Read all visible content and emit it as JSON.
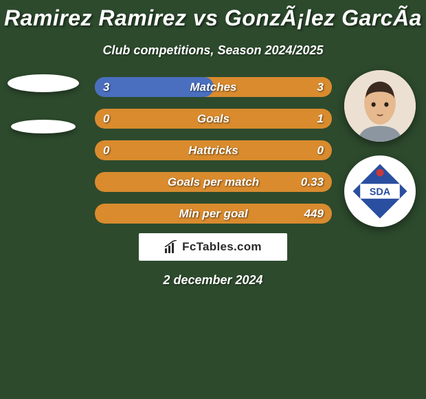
{
  "title": "Ramirez Ramirez vs GonzÃ¡lez GarcÃ­a",
  "subtitle": "Club competitions, Season 2024/2025",
  "date": "2 december 2024",
  "colors": {
    "background": "#2d4a2d",
    "bar_left": "#4a6fbf",
    "bar_right": "#d98b2e",
    "bar_track": "#d98b2e",
    "text": "#ffffff",
    "logo_box": "#ffffff"
  },
  "bars": [
    {
      "label": "Matches",
      "left": "3",
      "right": "3",
      "left_frac": 0.5
    },
    {
      "label": "Goals",
      "left": "0",
      "right": "1",
      "left_frac": 0.0
    },
    {
      "label": "Hattricks",
      "left": "0",
      "right": "0",
      "left_frac": 0.0,
      "all_track": true
    },
    {
      "label": "Goals per match",
      "left": "",
      "right": "0.33",
      "left_frac": 0.0
    },
    {
      "label": "Min per goal",
      "left": "",
      "right": "449",
      "left_frac": 0.0
    }
  ],
  "logo_text": "FcTables.com",
  "badge": {
    "outer": "#ffffff",
    "diamond": "#2a4ea0",
    "accent": "#c83a3a"
  }
}
